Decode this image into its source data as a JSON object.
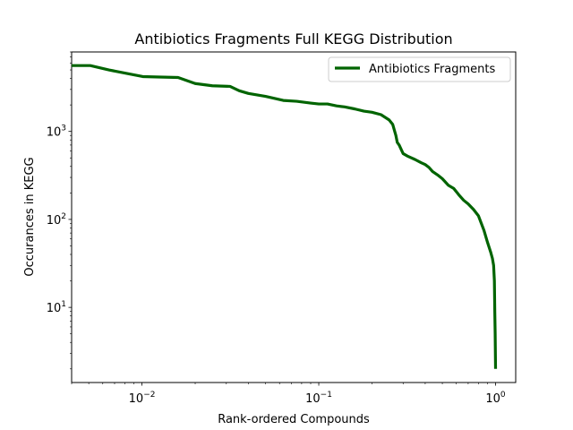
{
  "chart_data": {
    "type": "line",
    "title": "Antibiotics Fragments Full KEGG Distribution",
    "xlabel": "Rank-ordered Compounds",
    "ylabel": "Occurances in KEGG",
    "xscale": "log",
    "yscale": "log",
    "xlim": [
      0.004,
      1.3
    ],
    "ylim": [
      1.4,
      8000
    ],
    "grid": false,
    "legend_position": "top-right",
    "x_ticks": [
      {
        "value": 0.01,
        "base": "10",
        "exp": "−2"
      },
      {
        "value": 0.1,
        "base": "10",
        "exp": "−1"
      },
      {
        "value": 1,
        "base": "10",
        "exp": "0"
      }
    ],
    "y_ticks": [
      {
        "value": 10,
        "base": "10",
        "exp": "1"
      },
      {
        "value": 100,
        "base": "10",
        "exp": "2"
      },
      {
        "value": 1000,
        "base": "10",
        "exp": "3"
      }
    ],
    "series": [
      {
        "name": "Antibiotics Fragments",
        "color": "#006400",
        "x": [
          0.004,
          0.0051,
          0.0065,
          0.008,
          0.0101,
          0.0126,
          0.016,
          0.02,
          0.025,
          0.0315,
          0.0355,
          0.04,
          0.05,
          0.063,
          0.075,
          0.09,
          0.1,
          0.112,
          0.126,
          0.14,
          0.16,
          0.18,
          0.2,
          0.225,
          0.25,
          0.262,
          0.273,
          0.278,
          0.285,
          0.3,
          0.32,
          0.35,
          0.38,
          0.4,
          0.42,
          0.44,
          0.47,
          0.5,
          0.54,
          0.58,
          0.62,
          0.66,
          0.7,
          0.75,
          0.8,
          0.86,
          0.9,
          0.94,
          0.96,
          0.975,
          0.985,
          0.99,
          0.995,
          1.0
        ],
        "y": [
          5600,
          5600,
          5000,
          4600,
          4200,
          4150,
          4100,
          3500,
          3300,
          3250,
          2900,
          2700,
          2500,
          2250,
          2200,
          2100,
          2050,
          2050,
          1950,
          1900,
          1800,
          1700,
          1650,
          1550,
          1350,
          1200,
          900,
          750,
          700,
          560,
          520,
          480,
          440,
          420,
          390,
          350,
          320,
          290,
          245,
          225,
          190,
          165,
          150,
          130,
          110,
          75,
          55,
          42,
          36,
          30,
          20,
          9,
          5,
          2
        ]
      }
    ]
  }
}
